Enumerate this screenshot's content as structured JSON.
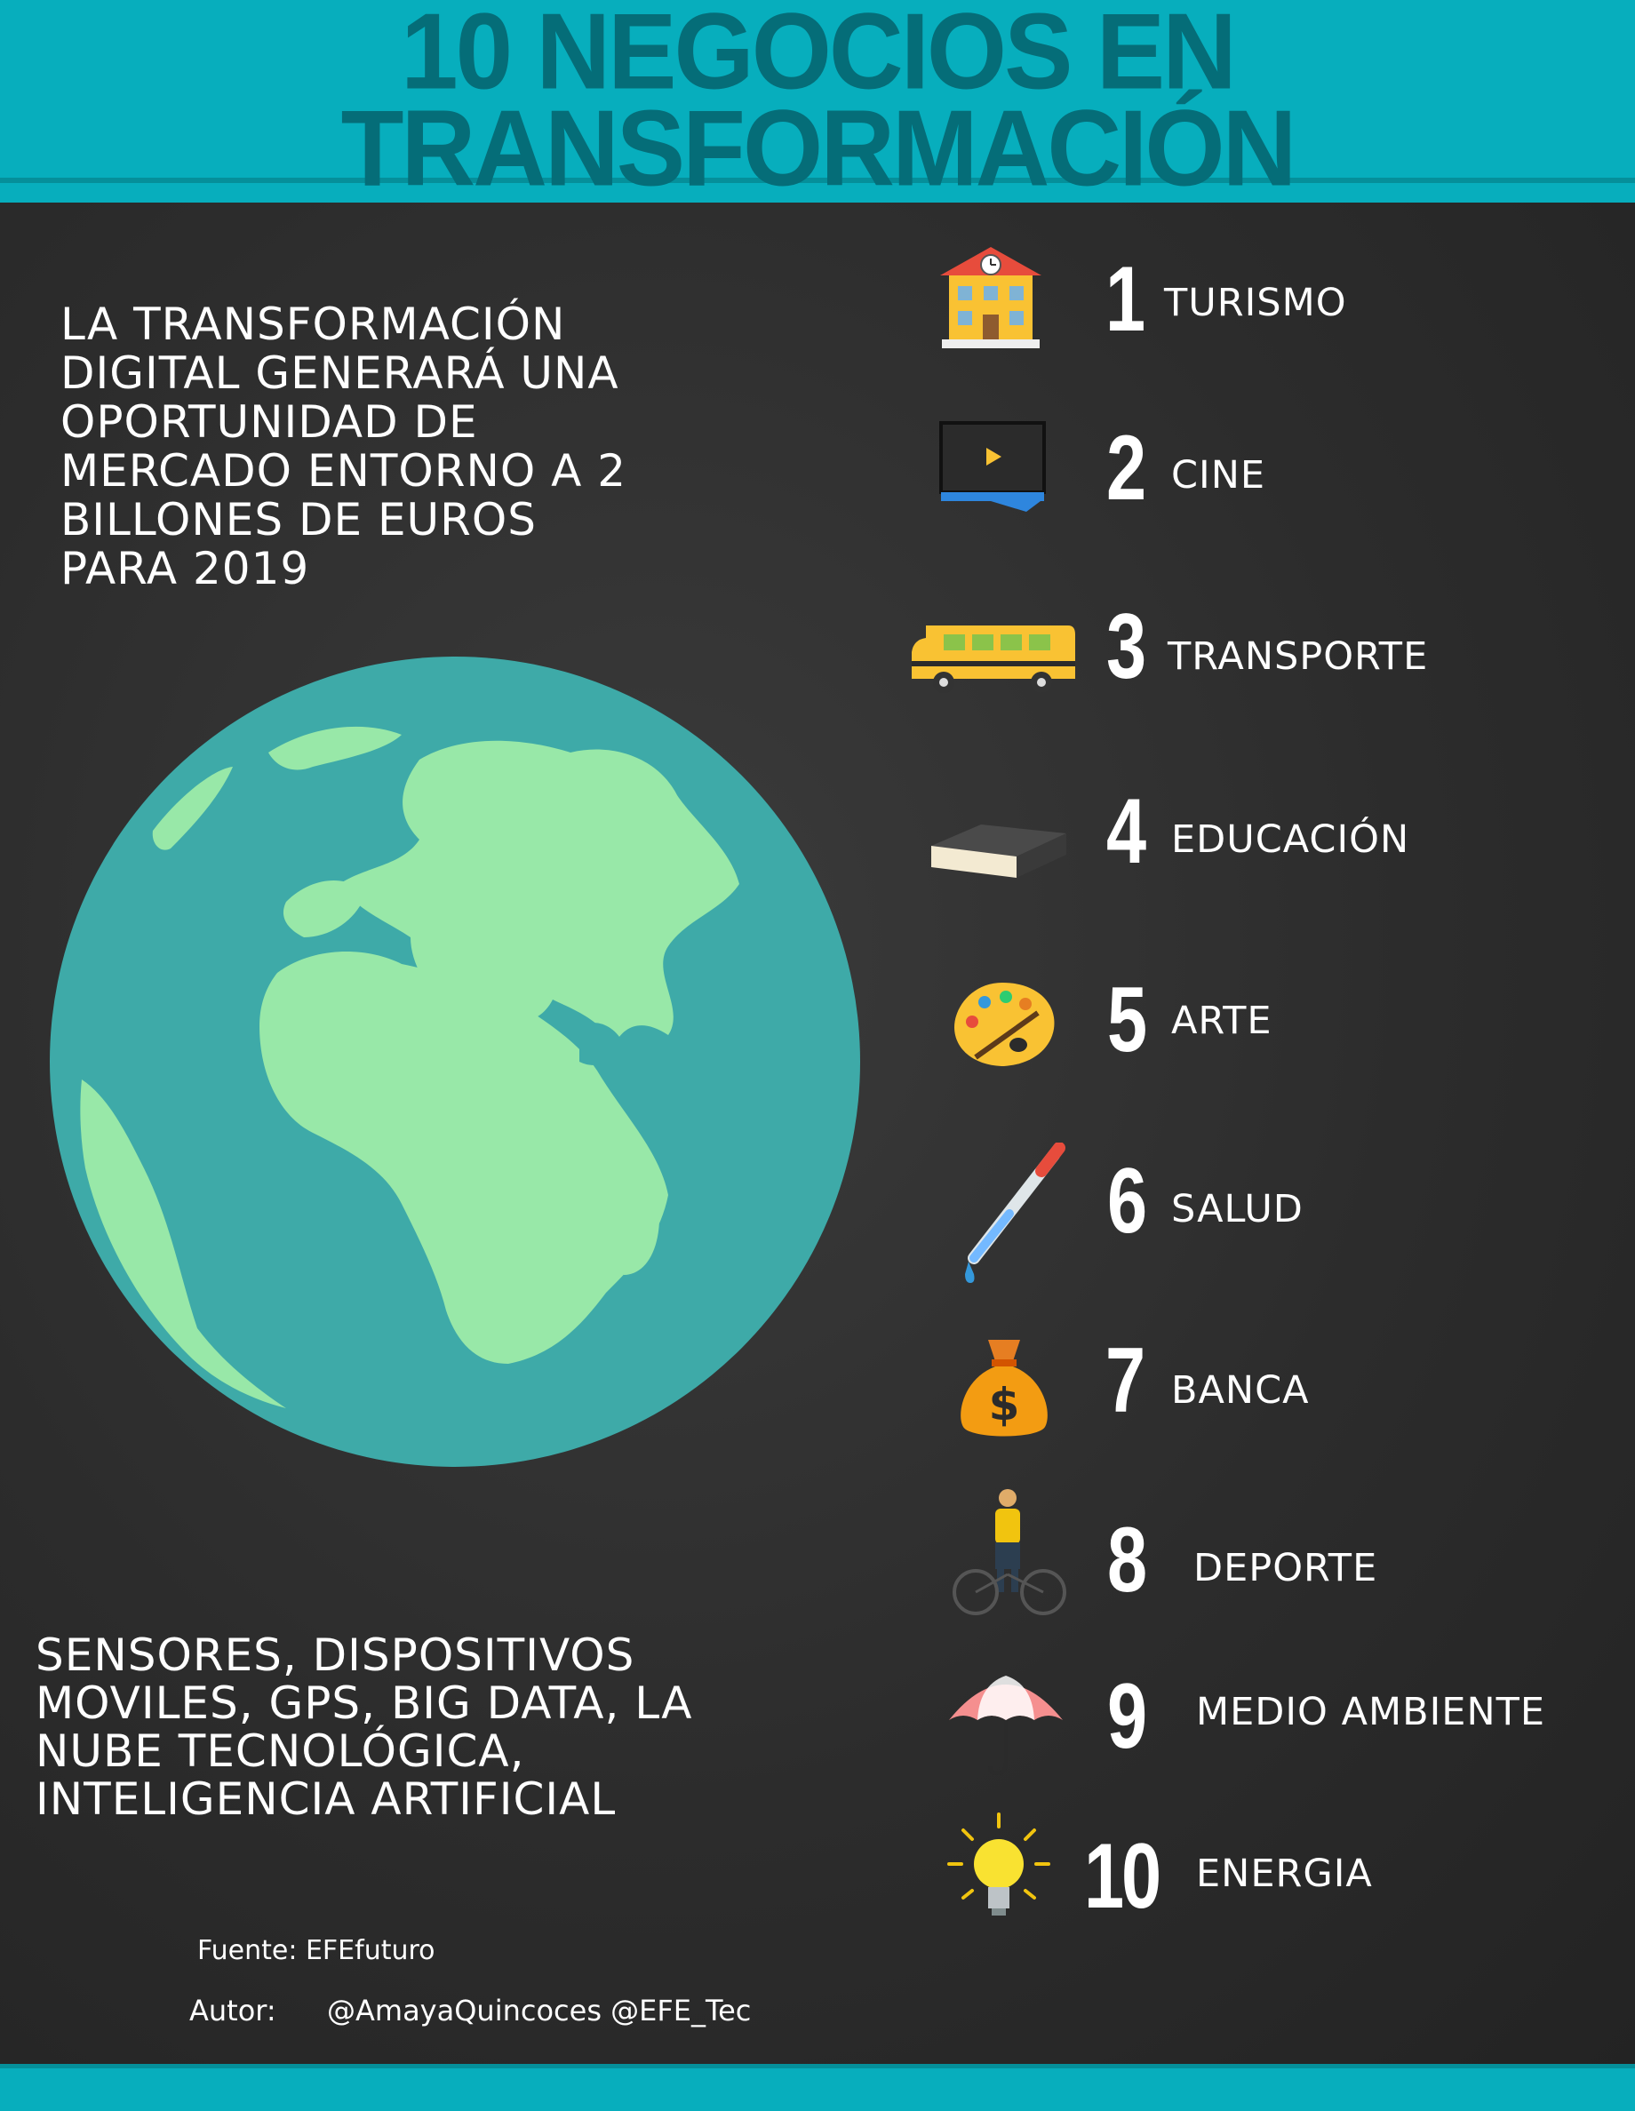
{
  "header": {
    "title_line1": "10 NEGOCIOS EN",
    "title_line2": "TRANSFORMACIÓN"
  },
  "intro": "LA TRANSFORMACIÓN DIGITAL GENERARÁ UNA OPORTUNIDAD DE MERCADO ENTORNO A 2 BILLONES DE EUROS PARA 2019",
  "technologies": "SENSORES, DISPOSITIVOS MOVILES, GPS, BIG DATA, LA NUBE TECNOLÓGICA, INTELIGENCIA ARTIFICIAL",
  "footer": {
    "source": "Fuente: EFEfuturo",
    "author_label": "Autor:",
    "author_value": "@AmayaQuincoces @EFE_Tec"
  },
  "business_list": [
    {
      "number": "1",
      "label": "TURISMO",
      "icon": "hotel-icon"
    },
    {
      "number": "2",
      "label": "CINE",
      "icon": "movie-screen-icon"
    },
    {
      "number": "3",
      "label": "TRANSPORTE",
      "icon": "bus-icon"
    },
    {
      "number": "4",
      "label": "EDUCACIÓN",
      "icon": "book-icon"
    },
    {
      "number": "5",
      "label": "ARTE",
      "icon": "paint-palette-icon"
    },
    {
      "number": "6",
      "label": "SALUD",
      "icon": "pipette-icon"
    },
    {
      "number": "7",
      "label": "BANCA",
      "icon": "money-bag-icon"
    },
    {
      "number": "8",
      "label": "DEPORTE",
      "icon": "cyclist-icon"
    },
    {
      "number": "9",
      "label": "MEDIO AMBIENTE",
      "icon": "umbrella-icon"
    },
    {
      "number": "10",
      "label": "ENERGIA",
      "icon": "lightbulb-icon"
    }
  ],
  "colors": {
    "header": "#07aebd",
    "title": "#056d78",
    "board": "#2c2c2c",
    "ocean": "#3eaaa8",
    "land": "#98e8a8"
  }
}
